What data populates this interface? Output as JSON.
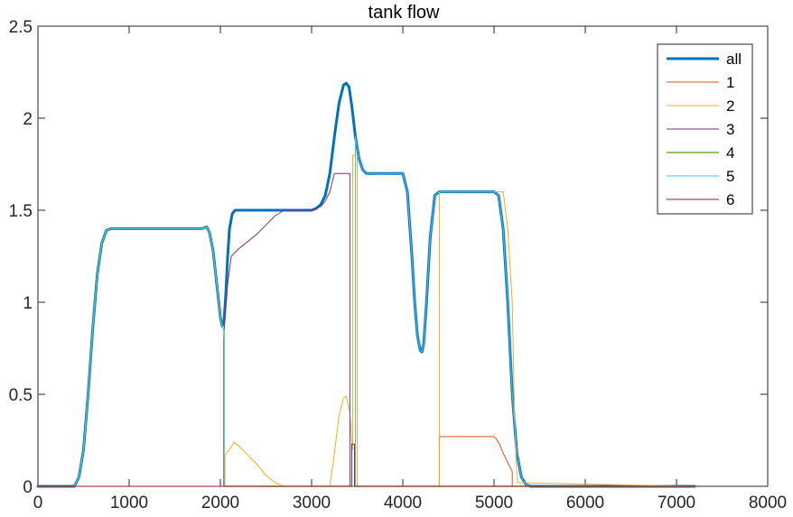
{
  "chart_data": {
    "type": "line",
    "title": "tank flow",
    "xlabel": "",
    "ylabel": "",
    "xlim": [
      0,
      8000
    ],
    "ylim": [
      0,
      2.5
    ],
    "xticks": [
      0,
      1000,
      2000,
      3000,
      4000,
      5000,
      6000,
      7000,
      8000
    ],
    "xtick_labels": [
      "0",
      "1000",
      "2000",
      "3000",
      "4000",
      "5000",
      "6000",
      "7000",
      "8000"
    ],
    "yticks": [
      0,
      0.5,
      1,
      1.5,
      2,
      2.5
    ],
    "ytick_labels": [
      "0",
      "0.5",
      "1",
      "1.5",
      "2",
      "2.5"
    ],
    "grid": false,
    "legend_position": "top-right",
    "series": [
      {
        "name": "all",
        "color": "#0072BD",
        "width": 3,
        "x": [
          0,
          400,
          450,
          500,
          550,
          600,
          650,
          700,
          750,
          800,
          1800,
          1850,
          1880,
          1920,
          1960,
          2000,
          2020,
          2040,
          2060,
          2080,
          2100,
          2130,
          2160,
          2200,
          2250,
          3000,
          3050,
          3100,
          3150,
          3200,
          3250,
          3300,
          3350,
          3380,
          3410,
          3440,
          3480,
          3520,
          3560,
          3600,
          4000,
          4050,
          4100,
          4130,
          4160,
          4190,
          4210,
          4230,
          4260,
          4300,
          4350,
          4400,
          4450,
          5000,
          5050,
          5100,
          5150,
          5200,
          5250,
          5300,
          5350,
          5400,
          7200
        ],
        "y": [
          0,
          0,
          0.05,
          0.2,
          0.5,
          0.85,
          1.15,
          1.32,
          1.39,
          1.4,
          1.4,
          1.41,
          1.38,
          1.28,
          1.1,
          0.92,
          0.87,
          0.9,
          1.05,
          1.25,
          1.4,
          1.48,
          1.5,
          1.5,
          1.5,
          1.5,
          1.51,
          1.53,
          1.58,
          1.7,
          1.9,
          2.08,
          2.18,
          2.19,
          2.17,
          2.07,
          1.9,
          1.78,
          1.72,
          1.7,
          1.7,
          1.6,
          1.25,
          1.0,
          0.82,
          0.74,
          0.73,
          0.78,
          1.0,
          1.35,
          1.58,
          1.6,
          1.6,
          1.6,
          1.58,
          1.4,
          1.0,
          0.5,
          0.18,
          0.05,
          0.01,
          0,
          0
        ]
      },
      {
        "name": "1",
        "color": "#D95319",
        "width": 1,
        "x": [
          0,
          4400,
          4400,
          4410,
          5000,
          5020,
          5060,
          5100,
          5150,
          5200,
          5200,
          7200
        ],
        "y": [
          0,
          0,
          0.26,
          0.27,
          0.27,
          0.26,
          0.23,
          0.18,
          0.13,
          0.08,
          0,
          0
        ]
      },
      {
        "name": "2",
        "color": "#EDB120",
        "width": 1,
        "x": [
          0,
          2040,
          2050,
          2050,
          2100,
          2150,
          2200,
          2300,
          2400,
          2500,
          2600,
          2700,
          2700,
          3200,
          3250,
          3300,
          3350,
          3380,
          3420,
          3440,
          3450,
          3450,
          3460,
          3480,
          3500,
          3500,
          4400,
          4400,
          4420,
          5100,
          5150,
          5200,
          5220,
          5240,
          5260,
          7200
        ],
        "y": [
          0,
          0,
          0,
          0.17,
          0.2,
          0.24,
          0.22,
          0.17,
          0.12,
          0.06,
          0.02,
          0,
          0,
          0,
          0.18,
          0.38,
          0.48,
          0.49,
          0.4,
          0.25,
          0.2,
          1.8,
          1.8,
          1.79,
          1.78,
          0,
          0,
          1.6,
          1.6,
          1.6,
          1.4,
          1.0,
          0.5,
          0.15,
          0.02,
          0
        ]
      },
      {
        "name": "3",
        "color": "#7E2F8E",
        "width": 1,
        "x": [
          0,
          2035,
          2035,
          2080,
          2120,
          2200,
          2300,
          2400,
          2500,
          2600,
          2700,
          3000,
          3100,
          3150,
          3200,
          3250,
          3400,
          3420,
          3420,
          3430,
          7200
        ],
        "y": [
          0,
          0,
          0.8,
          1.1,
          1.25,
          1.29,
          1.33,
          1.37,
          1.42,
          1.47,
          1.5,
          1.5,
          1.52,
          1.55,
          1.6,
          1.7,
          1.7,
          1.7,
          0,
          0,
          0
        ]
      },
      {
        "name": "4",
        "color": "#77AC30",
        "width": 1.5,
        "x": [
          0,
          400,
          450,
          500,
          550,
          600,
          650,
          700,
          750,
          800,
          1800,
          1850,
          1880,
          1920,
          1960,
          2000,
          2020,
          2040,
          2040,
          2060,
          7200
        ],
        "y": [
          0,
          0,
          0.05,
          0.2,
          0.5,
          0.85,
          1.15,
          1.32,
          1.39,
          1.4,
          1.4,
          1.41,
          1.38,
          1.28,
          1.1,
          0.92,
          0.87,
          0.85,
          0,
          0,
          0
        ]
      },
      {
        "name": "5",
        "color": "#4DBEEE",
        "width": 1,
        "x": [
          0,
          400,
          450,
          500,
          550,
          600,
          650,
          700,
          750,
          800,
          1800,
          1850,
          1880,
          1920,
          1960,
          2000,
          2020,
          2040,
          2040,
          3480,
          3480,
          3520,
          3560,
          3600,
          4000,
          4050,
          4100,
          4130,
          4160,
          4190,
          4210,
          4230,
          4260,
          4300,
          4350,
          4400,
          4450,
          5000,
          5050,
          5100,
          5150,
          5200,
          5250,
          5300,
          5350,
          5400,
          7200
        ],
        "y": [
          0,
          0,
          0.05,
          0.2,
          0.5,
          0.85,
          1.15,
          1.32,
          1.39,
          1.4,
          1.4,
          1.41,
          1.38,
          1.28,
          1.1,
          0.92,
          0.87,
          0.85,
          0,
          0,
          1.9,
          1.78,
          1.72,
          1.7,
          1.7,
          1.6,
          1.25,
          1.0,
          0.82,
          0.74,
          0.73,
          0.78,
          1.0,
          1.35,
          1.58,
          1.6,
          1.6,
          1.6,
          1.58,
          1.4,
          1.0,
          0.5,
          0.18,
          0.05,
          0.01,
          0,
          0
        ]
      },
      {
        "name": "6",
        "color": "#A2142F",
        "width": 1,
        "x": [
          0,
          3440,
          3440,
          3460,
          3470,
          3470,
          7200
        ],
        "y": [
          0,
          0,
          0.23,
          0.23,
          0.23,
          0,
          0
        ]
      }
    ]
  }
}
